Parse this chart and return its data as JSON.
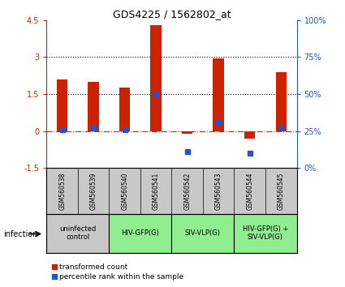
{
  "title": "GDS4225 / 1562802_at",
  "samples": [
    "GSM560538",
    "GSM560539",
    "GSM560540",
    "GSM560541",
    "GSM560542",
    "GSM560543",
    "GSM560544",
    "GSM560545"
  ],
  "red_values": [
    2.1,
    2.0,
    1.75,
    4.3,
    -0.1,
    2.95,
    -0.3,
    2.4
  ],
  "blue_values_left": [
    0.05,
    0.1,
    0.05,
    1.5,
    -0.85,
    0.35,
    -0.9,
    0.1
  ],
  "ylim_left": [
    -1.5,
    4.5
  ],
  "ylim_right": [
    0,
    100
  ],
  "yticks_left": [
    -1.5,
    0,
    1.5,
    3.0,
    4.5
  ],
  "yticks_right": [
    0,
    25,
    50,
    75,
    100
  ],
  "ytick_labels_left": [
    "-1.5",
    "0",
    "1.5",
    "3",
    "4.5"
  ],
  "ytick_labels_right": [
    "0%",
    "25%",
    "50%",
    "75%",
    "100%"
  ],
  "hline_dotted": [
    1.5,
    3.0
  ],
  "hline_dashed_red": 0.0,
  "groups": [
    {
      "label": "uninfected\ncontrol",
      "samples": [
        0,
        1
      ],
      "color": "#c8c8c8"
    },
    {
      "label": "HIV-GFP(G)",
      "samples": [
        2,
        3
      ],
      "color": "#90ee90"
    },
    {
      "label": "SIV-VLP(G)",
      "samples": [
        4,
        5
      ],
      "color": "#90ee90"
    },
    {
      "label": "HIV-GFP(G) +\nSIV-VLP(G)",
      "samples": [
        6,
        7
      ],
      "color": "#90ee90"
    }
  ],
  "sample_box_color": "#c8c8c8",
  "bar_color": "#cc2200",
  "dot_color": "#2255cc",
  "infection_label": "infection",
  "legend_red": "transformed count",
  "legend_blue": "percentile rank within the sample",
  "bar_width": 0.35
}
